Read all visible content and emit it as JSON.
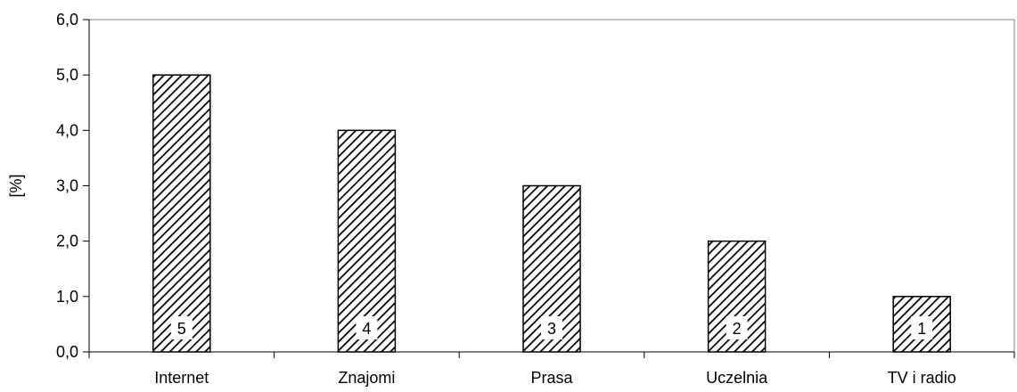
{
  "chart_data": {
    "type": "bar",
    "categories": [
      "Internet",
      "Znajomi",
      "Prasa",
      "Uczelnia",
      "TV i radio"
    ],
    "values": [
      5.0,
      4.0,
      3.0,
      2.0,
      1.0
    ],
    "data_labels": [
      "5",
      "4",
      "3",
      "2",
      "1"
    ],
    "ylabel": "[%]",
    "ylim": [
      0,
      6
    ],
    "yticks": [
      0,
      1,
      2,
      3,
      4,
      5,
      6
    ],
    "ytick_labels": [
      "0,0",
      "1,0",
      "2,0",
      "3,0",
      "4,0",
      "5,0",
      "6,0"
    ],
    "grid": false,
    "bar_fill": "diagonal-hatch",
    "colors": {
      "bar_stroke": "#000000",
      "hatch": "#000000",
      "background": "#ffffff"
    }
  }
}
